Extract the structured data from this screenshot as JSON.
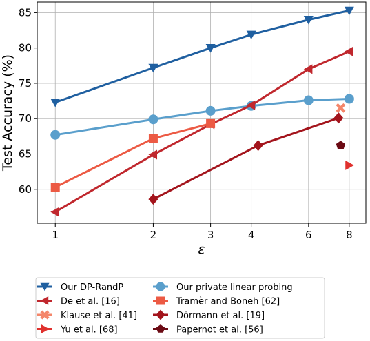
{
  "chart_data": {
    "type": "line",
    "xlabel": "ε",
    "ylabel": "Test Accuracy (%)",
    "xscale": "log",
    "xlim": [
      0.88,
      9.0
    ],
    "ylim": [
      55.2,
      86.5
    ],
    "x_ticks": [
      1,
      2,
      3,
      4,
      6,
      8
    ],
    "y_ticks": [
      60,
      65,
      70,
      75,
      80,
      85
    ],
    "grid": true,
    "legend_position": "bottom, outside plot, 2 columns",
    "series": [
      {
        "name": "Our DP-RandP",
        "color": "#1f5fa0",
        "marker": "tri_down",
        "x": [
          1,
          2,
          3,
          4,
          6,
          8
        ],
        "y": [
          72.3,
          77.2,
          80.0,
          81.9,
          84.0,
          85.3
        ]
      },
      {
        "name": "Our private linear probing",
        "color": "#5a9fcc",
        "marker": "circle",
        "x": [
          1,
          2,
          3,
          4,
          6,
          8
        ],
        "y": [
          67.7,
          69.9,
          71.1,
          71.8,
          72.6,
          72.8
        ]
      },
      {
        "name": "De et al. [16]",
        "color": "#c0272d",
        "marker": "tri_left",
        "x": [
          1,
          2,
          3,
          4,
          6,
          8
        ],
        "y": [
          56.8,
          64.9,
          69.2,
          71.9,
          77.0,
          79.5
        ]
      },
      {
        "name": "Tramèr and Boneh [62]",
        "color": "#ec5a44",
        "marker": "square",
        "x": [
          1,
          2,
          3
        ],
        "y": [
          60.3,
          67.2,
          69.3
        ]
      },
      {
        "name": "Klause et al. [41]",
        "color": "#f4866a",
        "marker": "x_thick",
        "x": [
          7.53
        ],
        "y": [
          71.5
        ]
      },
      {
        "name": "Dörmann et al. [19]",
        "color": "#a3141c",
        "marker": "diamond",
        "x": [
          2,
          4.2,
          7.42
        ],
        "y": [
          58.6,
          66.2,
          70.1
        ]
      },
      {
        "name": "Yu et al. [68]",
        "color": "#e0312e",
        "marker": "tri_right",
        "x": [
          8
        ],
        "y": [
          63.4
        ]
      },
      {
        "name": "Papernot et al. [56]",
        "color": "#6b0a14",
        "marker": "pentagon",
        "x": [
          7.53
        ],
        "y": [
          66.2
        ]
      }
    ]
  }
}
